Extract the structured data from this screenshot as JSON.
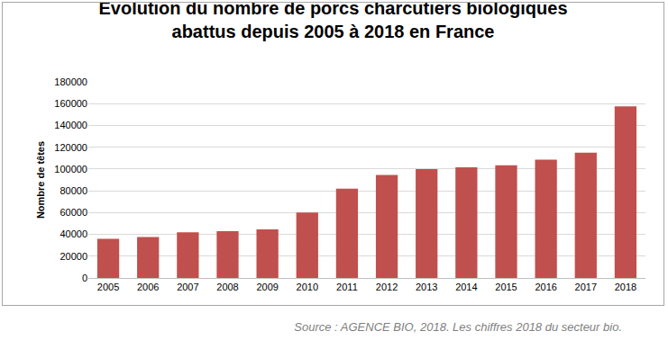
{
  "chart_data": {
    "type": "bar",
    "title": "Evolution du nombre de porcs charcutiers biologiques abattus depuis 2005 à 2018 en France",
    "y_label": "Nombre de têtes",
    "categories": [
      "2005",
      "2006",
      "2007",
      "2008",
      "2009",
      "2010",
      "2011",
      "2012",
      "2013",
      "2014",
      "2015",
      "2016",
      "2017",
      "2018"
    ],
    "values": [
      36000,
      37500,
      42000,
      43000,
      44500,
      60000,
      82000,
      94500,
      100000,
      101500,
      103500,
      108500,
      115000,
      157500
    ],
    "color": "#c0504d",
    "ylim": [
      0,
      180000
    ],
    "yticks": [
      0,
      20000,
      40000,
      60000,
      80000,
      100000,
      120000,
      140000,
      160000,
      180000
    ],
    "grid": true,
    "annotations": [
      "Source : AGENCE BIO, 2018. Les chiffres 2018 du secteur bio."
    ]
  }
}
